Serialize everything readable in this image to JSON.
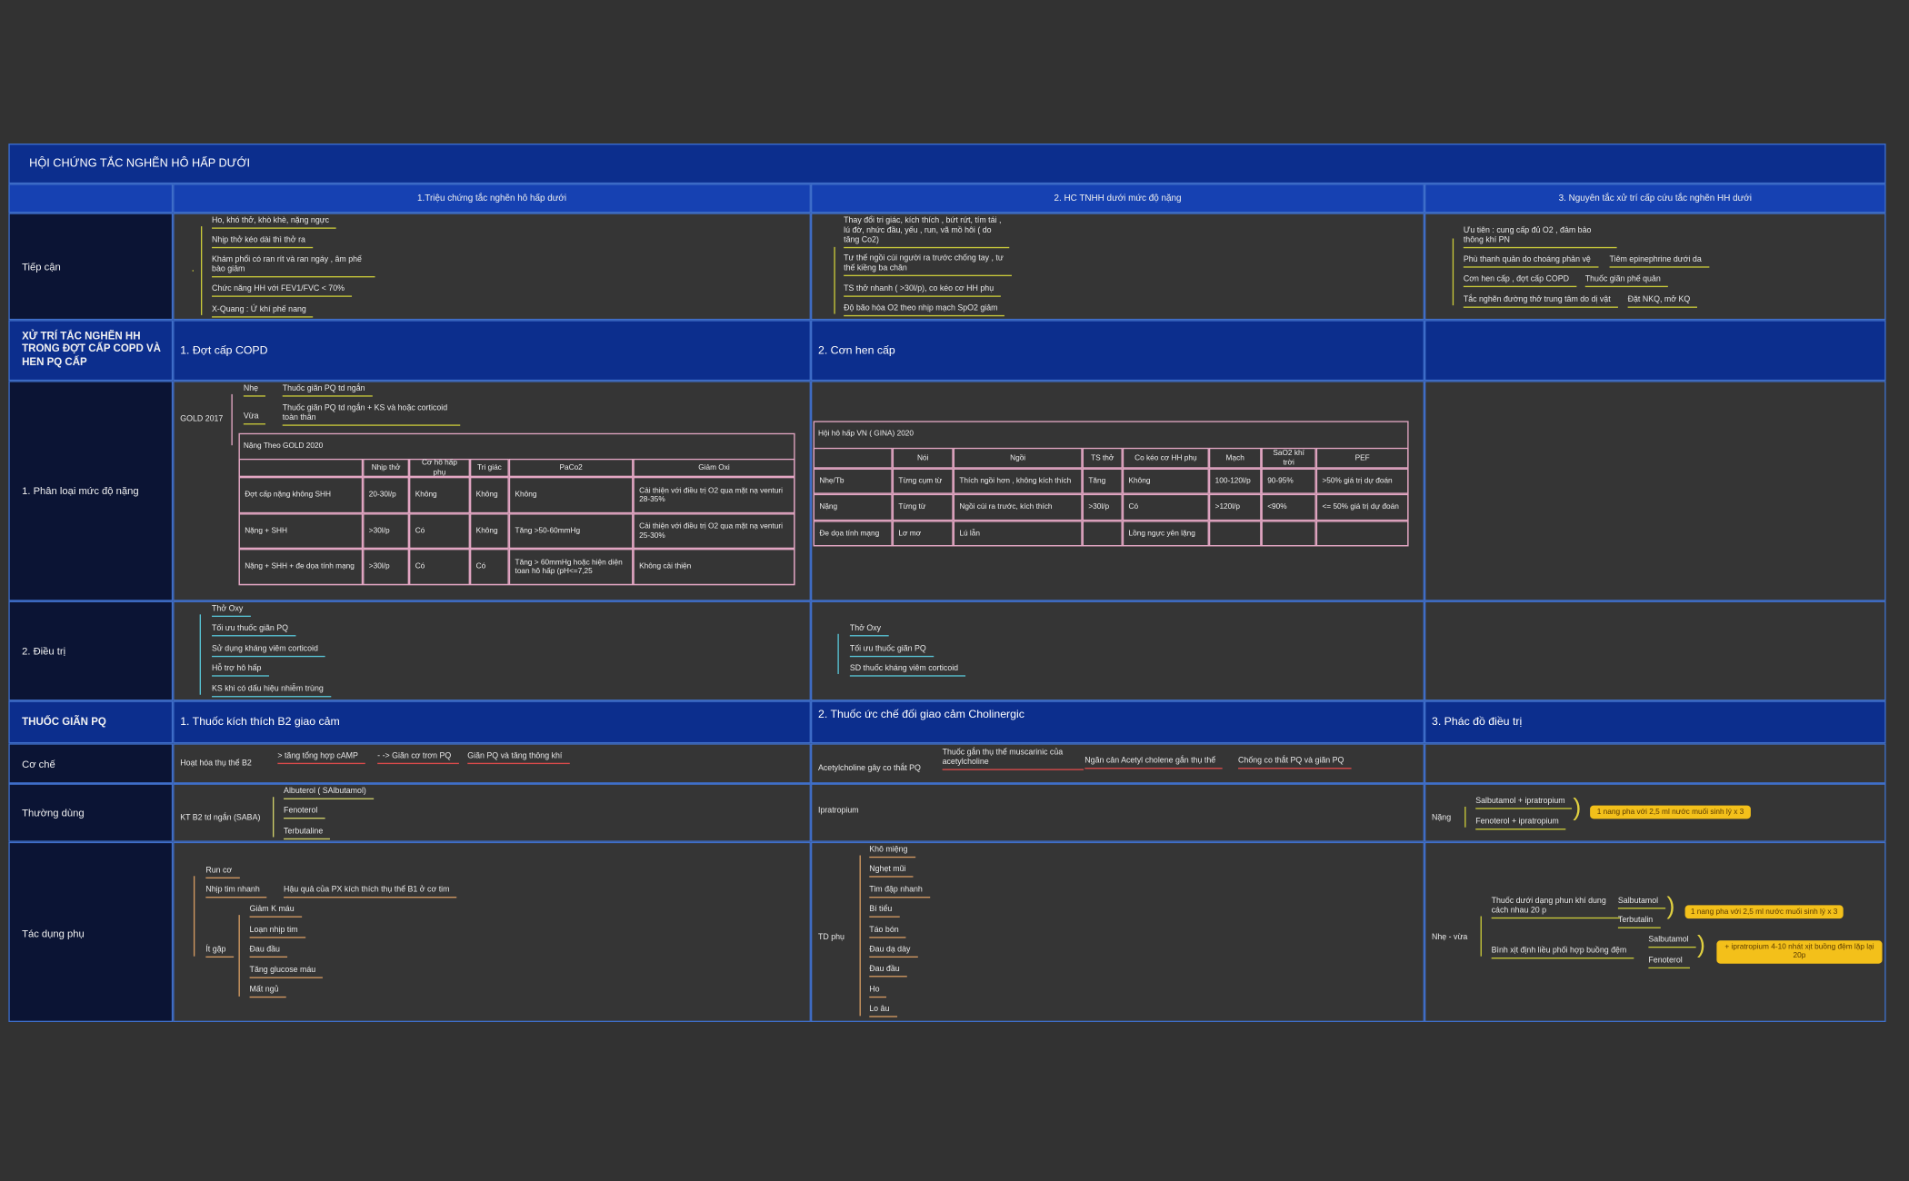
{
  "title": "HỘI CHỨNG TẮC NGHẼN HÔ HẤP DƯỚI",
  "column_headers": [
    "1.Triệu chứng tắc nghẽn hô hấp dưới",
    "2. HC TNHH dưới mức độ nặng",
    "3. Nguyên tắc xử trí cấp cứu tắc nghẽn HH dưới"
  ],
  "approach": {
    "label": "Tiếp cận",
    "symptoms": [
      "Ho, khó thở, khò khè, nặng ngực",
      "Nhịp thở kéo dài thì thở ra",
      "Khám phổi có ran rít và ran ngáy , âm phế bào giảm",
      "Chức năng HH với FEV1/FVC < 70%",
      "X-Quang : Ứ khí phế nang"
    ],
    "severity_signs": [
      "Thay đổi tri giác, kích thích , bứt rứt, tím tái , lú đờ, nhức đầu, yếu , run, vã mồ hôi ( do tăng Co2)",
      "Tư thế ngồi cúi người ra trước chống tay , tư thế kiềng ba chân",
      "TS thở nhanh ( >30l/p), co kéo cơ HH phụ",
      "Độ bão hòa O2 theo nhịp mạch SpO2 giảm"
    ],
    "priority": "Ưu tiên : cung cấp đủ O2 , đảm bảo thông khí PN",
    "principles": [
      {
        "cause": "Phù thanh quản do choáng phản vệ",
        "action": "Tiêm epinephrine dưới da"
      },
      {
        "cause": "Cơn hen cấp , đợt cấp COPD",
        "action": "Thuốc giãn phế quản"
      },
      {
        "cause": "Tắc nghẽn đường thở trung tâm do dị vật",
        "action": "Đặt NKQ, mở KQ"
      }
    ]
  },
  "management": {
    "label": "XỬ TRÍ TẮC NGHẼN HH TRONG ĐỢT CẤP COPD VÀ HEN PQ CẤP",
    "copd_title": "1. Đợt cấp COPD",
    "asthma_title": "2. Cơn hen  cấp",
    "classification": {
      "label": "1. Phân loại mức độ nặng",
      "copd": {
        "system": "GOLD 2017",
        "mild": {
          "level": "Nhẹ",
          "treatment": "Thuốc giãn PQ td ngắn"
        },
        "moderate": {
          "level": "Vừa",
          "treatment": "Thuốc giãn PQ td ngắn + KS và hoặc corticoid toàn thân"
        },
        "table": {
          "title": "Nặng Theo GOLD 2020",
          "headers": [
            null,
            "Nhịp thở",
            "Cơ hô hấp phụ",
            "Tri giác",
            "PaCo2",
            "Giảm Oxi"
          ],
          "rows": [
            [
              "Đợt cấp nặng không SHH",
              "20-30l/p",
              "Không",
              "Không",
              "Không",
              "Cải thiện với điều trị O2 qua mặt nạ venturi 28-35%"
            ],
            [
              "Nặng + SHH",
              ">30l/p",
              "Có",
              "Không",
              "Tăng >50-60mmHg",
              "Cải thiện với điều trị O2 qua mặt nạ venturi 25-30%"
            ],
            [
              "Nặng + SHH + đe dọa tính mạng",
              ">30l/p",
              "Có",
              "Có",
              "Tăng > 60mmHg hoặc hiện diện toan hô hấp (pH<=7,25",
              "Không cải thiện"
            ]
          ]
        }
      },
      "asthma": {
        "table": {
          "title": "Hội hô hấp VN ( GINA) 2020",
          "headers": [
            null,
            "Nói",
            "Ngồi",
            "TS thở",
            "Co kéo cơ HH phụ",
            "Mạch",
            "SaO2 khí trời",
            "PEF"
          ],
          "rows": [
            [
              "Nhẹ/Tb",
              "Từng cụm từ",
              "Thích ngồi hơn , không kích thích",
              "Tăng",
              "Không",
              "100-120l/p",
              "90-95%",
              ">50% giá trị dự đoán"
            ],
            [
              "Nặng",
              "Từng từ",
              "Ngồi cúi ra trước, kích thích",
              ">30l/p",
              "Có",
              ">120l/p",
              "<90%",
              "<= 50% giá trị dự đoán"
            ],
            [
              "Đe dọa tính mạng",
              "Lơ mơ",
              "Lú lẫn",
              null,
              "Lồng ngực yên lặng",
              null,
              null,
              null
            ]
          ]
        }
      }
    },
    "treatment": {
      "label": "2. Điều trị",
      "copd": [
        "Thở Oxy",
        "Tối ưu thuốc giãn PQ",
        "Sử dụng kháng viêm corticoid",
        "Hỗ trợ hô hấp",
        "KS khi có dấu hiệu nhiễm trùng"
      ],
      "asthma": [
        "Thở Oxy",
        "Tối ưu thuốc giãn PQ",
        "SD thuốc kháng viêm corticoid"
      ]
    }
  },
  "bronchodilators": {
    "label": "THUỐC GIÃN PQ",
    "sections": [
      "1. Thuốc kích thích B2 giao cảm",
      "2. Thuốc ức chế đối giao cảm Cholinergic",
      "3. Phác đồ điều trị"
    ],
    "mechanism": {
      "label": "Cơ chế",
      "b2": {
        "trigger": "Hoạt hóa thụ thể B2",
        "steps": [
          "> tăng tổng hợp cAMP",
          "- -> Giãn cơ trơn PQ",
          "Giãn PQ và tăng thông khí"
        ]
      },
      "anticholinergic": {
        "trigger": "Acetylcholine gây co thắt PQ",
        "steps": [
          "Thuốc gắn thụ thể muscarinic của acetylcholine",
          "Ngăn cản Acetyl cholene gắn thụ thể",
          "Chống co thắt PQ và giãn PQ"
        ]
      }
    },
    "common": {
      "label": "Thường dùng",
      "b2": {
        "group": "KT B2 td ngắn (SABA)",
        "drugs": [
          "Albuterol ( SAlbutamol)",
          "Fenoterol",
          "Terbutaline"
        ]
      },
      "anticholinergic": "Ipratropium",
      "regimen": {
        "level": "Nặng",
        "combos": [
          "Salbutamol + ipratropium",
          "Fenoterol + ipratropium"
        ],
        "note": "1 nang pha với 2,5 ml nước muối sinh lý x 3"
      }
    },
    "side_effects": {
      "label": "Tác dụng phụ",
      "b2": {
        "common": [
          "Run cơ",
          "Nhịp tim nhanh"
        ],
        "tachycardia_cause": "Hậu quả của PX kích thích thụ thể B1 ở cơ tim",
        "rare_label": "Ít gặp",
        "rare": [
          "Giảm K máu",
          "Loạn nhịp tim",
          "Đau đầu",
          "Tăng glucose máu",
          "Mất ngủ"
        ]
      },
      "anticholinergic": {
        "label": "TD phụ",
        "items": [
          "Khô miệng",
          "Nghẹt mũi",
          "Tim đập nhanh",
          "Bí tiểu",
          "Táo bón",
          "Đau dạ dày",
          "Đau đầu",
          "Ho",
          "Lo âu"
        ]
      },
      "regimen": {
        "level": "Nhẹ - vừa",
        "nebulizer": {
          "method": "Thuốc dưới dạng phun khí dung cách nhau 20 p",
          "drugs": [
            "Salbutamol",
            "Terbutalin"
          ],
          "note": "1 nang pha với 2,5 ml nước muối sinh lý x 3"
        },
        "inhaler": {
          "method": "Bình xịt định liều phối hợp buồng đệm",
          "drugs": [
            "Salbutamol",
            "Fenoterol"
          ],
          "note": "+ ipratropium 4-10 nhát xịt buồng đệm lặp lại 20p"
        }
      }
    }
  }
}
